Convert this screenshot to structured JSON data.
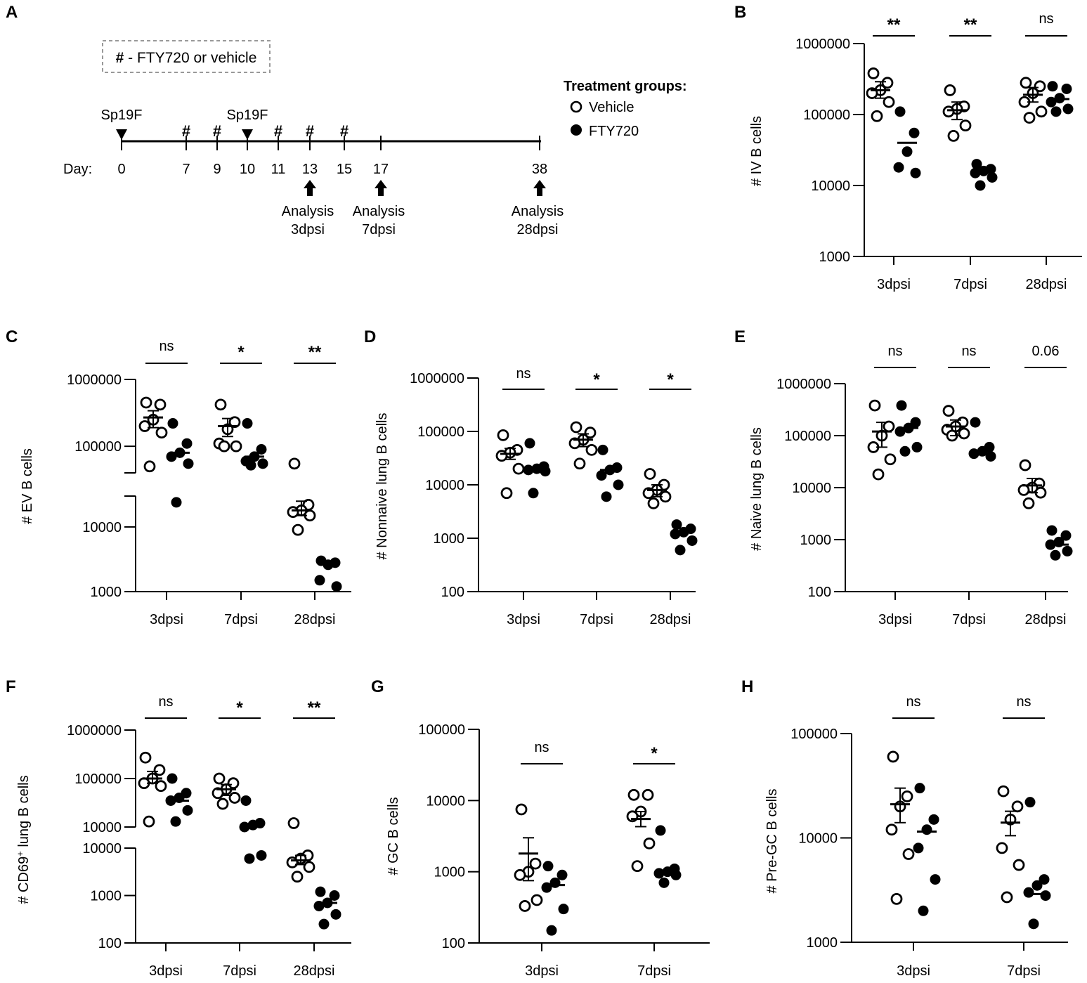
{
  "panel_labels": {
    "A": "A",
    "B": "B",
    "C": "C",
    "D": "D",
    "E": "E",
    "F": "F",
    "G": "G",
    "H": "H"
  },
  "timeline": {
    "legend_box": "# - FTY720 or vehicle",
    "day_prefix": "Day:",
    "infection_label": "Sp19F",
    "dose_symbol": "#",
    "days": [
      0,
      7,
      9,
      10,
      11,
      13,
      15,
      17,
      38
    ],
    "infection_days": [
      0,
      10
    ],
    "dose_days": [
      7,
      9,
      11,
      13,
      15
    ],
    "analyses": [
      {
        "day": 13,
        "line1": "Analysis",
        "line2": "3dpsi"
      },
      {
        "day": 17,
        "line1": "Analysis",
        "line2": "7dpsi"
      },
      {
        "day": 38,
        "line1": "Analysis",
        "line2": "28dpsi"
      }
    ],
    "treatment_title": "Treatment groups:",
    "groups": [
      {
        "name": "Vehicle",
        "marker": "open-circle"
      },
      {
        "name": "FTY720",
        "marker": "filled-circle"
      }
    ]
  },
  "chart_data": [
    {
      "panel": "B",
      "type": "scatter",
      "scale": "log",
      "ylabel": "# IV B cells",
      "ylim": [
        1000,
        1000000
      ],
      "yticks": [
        "1000000",
        "100000",
        "10000",
        "1000"
      ],
      "categories": [
        "3dpsi",
        "7dpsi",
        "28dpsi"
      ],
      "significance": [
        "**",
        "**",
        "ns"
      ],
      "series": [
        {
          "name": "Vehicle",
          "marker": "open",
          "values": [
            [
              380000,
              280000,
              220000,
              200000,
              150000,
              95000
            ],
            [
              220000,
              130000,
              120000,
              110000,
              70000,
              50000
            ],
            [
              280000,
              250000,
              200000,
              150000,
              110000,
              90000
            ]
          ],
          "mean": [
            220000,
            115000,
            190000
          ],
          "sem": [
            [
              170000,
              290000
            ],
            [
              85000,
              150000
            ],
            [
              150000,
              240000
            ]
          ]
        },
        {
          "name": "FTY720",
          "marker": "filled",
          "values": [
            [
              110000,
              55000,
              30000,
              18000,
              15000
            ],
            [
              20000,
              17000,
              16000,
              15000,
              13000,
              10000
            ],
            [
              250000,
              230000,
              170000,
              150000,
              120000,
              110000
            ]
          ],
          "mean": [
            40000,
            15500,
            165000
          ],
          "sem": null
        }
      ]
    },
    {
      "panel": "C",
      "type": "scatter",
      "scale": "log-broken",
      "ylabel": "# EV B cells",
      "ylim": [
        1000,
        1000000
      ],
      "axis_break": [
        30000,
        40000
      ],
      "yticks": [
        "1000000",
        "100000",
        "10000",
        "1000"
      ],
      "categories": [
        "3dpsi",
        "7dpsi",
        "28dpsi"
      ],
      "significance": [
        "ns",
        "*",
        "**"
      ],
      "series": [
        {
          "name": "Vehicle",
          "marker": "open",
          "values": [
            [
              450000,
              420000,
              250000,
              200000,
              160000,
              50000
            ],
            [
              420000,
              230000,
              180000,
              110000,
              100000,
              100000
            ],
            [
              55000,
              22000,
              18000,
              17000,
              15000,
              9000
            ]
          ],
          "mean": [
            270000,
            200000,
            18000
          ],
          "sem": [
            [
              190000,
              340000
            ],
            [
              140000,
              260000
            ],
            [
              15000,
              25000
            ]
          ]
        },
        {
          "name": "FTY720",
          "marker": "filled",
          "values": [
            [
              220000,
              110000,
              80000,
              70000,
              55000,
              24000
            ],
            [
              220000,
              90000,
              70000,
              60000,
              55000,
              52000
            ],
            [
              3000,
              2800,
              2600,
              1500,
              1200
            ]
          ],
          "mean": [
            80000,
            70000,
            2700
          ],
          "sem": null
        }
      ]
    },
    {
      "panel": "D",
      "type": "scatter",
      "scale": "log",
      "ylabel": "# Nonnaive lung B cells",
      "ylim": [
        100,
        1000000
      ],
      "yticks": [
        "1000000",
        "100000",
        "10000",
        "1000",
        "100"
      ],
      "categories": [
        "3dpsi",
        "7dpsi",
        "28dpsi"
      ],
      "significance": [
        "ns",
        "*",
        "*"
      ],
      "series": [
        {
          "name": "Vehicle",
          "marker": "open",
          "values": [
            [
              85000,
              45000,
              40000,
              35000,
              20000,
              7000
            ],
            [
              120000,
              95000,
              70000,
              60000,
              45000,
              25000
            ],
            [
              16000,
              10000,
              8000,
              7000,
              6000,
              4500
            ]
          ],
          "mean": [
            38000,
            70000,
            8000
          ],
          "sem": [
            [
              30000,
              48000
            ],
            [
              52000,
              90000
            ],
            [
              6000,
              10000
            ]
          ]
        },
        {
          "name": "FTY720",
          "marker": "filled",
          "values": [
            [
              60000,
              22000,
              20000,
              19000,
              18000,
              7000
            ],
            [
              45000,
              21000,
              19000,
              15000,
              10000,
              6000
            ],
            [
              1800,
              1500,
              1300,
              1200,
              900,
              600
            ]
          ],
          "mean": [
            19000,
            19000,
            1300
          ],
          "sem": null
        }
      ]
    },
    {
      "panel": "E",
      "type": "scatter",
      "scale": "log",
      "ylabel": "# Naive lung B cells",
      "ylim": [
        100,
        1000000
      ],
      "yticks": [
        "1000000",
        "100000",
        "10000",
        "1000",
        "100"
      ],
      "categories": [
        "3dpsi",
        "7dpsi",
        "28dpsi"
      ],
      "significance": [
        "ns",
        "ns",
        "0.06"
      ],
      "series": [
        {
          "name": "Vehicle",
          "marker": "open",
          "values": [
            [
              380000,
              150000,
              100000,
              60000,
              35000,
              18000
            ],
            [
              300000,
              180000,
              150000,
              130000,
              110000,
              100000
            ],
            [
              27000,
              12000,
              10000,
              9000,
              8000,
              5000
            ]
          ],
          "mean": [
            120000,
            150000,
            11000
          ],
          "sem": [
            [
              60000,
              180000
            ],
            [
              100000,
              200000
            ],
            [
              8000,
              15000
            ]
          ]
        },
        {
          "name": "FTY720",
          "marker": "filled",
          "values": [
            [
              380000,
              180000,
              140000,
              120000,
              60000,
              50000
            ],
            [
              180000,
              60000,
              50000,
              45000,
              40000
            ],
            [
              1500,
              1200,
              900,
              800,
              600,
              500
            ]
          ],
          "mean": [
            140000,
            50000,
            800
          ],
          "sem": null
        }
      ]
    },
    {
      "panel": "F",
      "type": "scatter",
      "scale": "log-broken",
      "ylabel": "# CD69+ lung B cells",
      "ylabel_main": "# CD69",
      "ylabel_sup": "+",
      "ylabel_rest": " lung B cells",
      "ylim": [
        100,
        1000000
      ],
      "axis_break": [
        10000,
        10000
      ],
      "yticks_upper": [
        "1000000",
        "100000",
        "10000"
      ],
      "yticks_lower": [
        "10000",
        "1000",
        "100"
      ],
      "categories": [
        "3dpsi",
        "7dpsi",
        "28dpsi"
      ],
      "significance": [
        "ns",
        "*",
        "**"
      ],
      "series": [
        {
          "name": "Vehicle",
          "marker": "open",
          "values": [
            [
              270000,
              150000,
              100000,
              80000,
              70000,
              13000
            ],
            [
              100000,
              80000,
              60000,
              50000,
              40000,
              30000
            ],
            [
              12000,
              7000,
              6000,
              5000,
              4000,
              2500
            ]
          ],
          "mean": [
            100000,
            60000,
            5500
          ],
          "sem": [
            [
              80000,
              140000
            ],
            [
              45000,
              75000
            ],
            [
              4500,
              7000
            ]
          ]
        },
        {
          "name": "FTY720",
          "marker": "filled",
          "values": [
            [
              100000,
              50000,
              40000,
              35000,
              22000,
              13000
            ],
            [
              35000,
              12000,
              11000,
              10000,
              7000,
              6000
            ],
            [
              1200,
              1000,
              700,
              600,
              400,
              250
            ]
          ],
          "mean": [
            35000,
            10500,
            700
          ],
          "sem": null
        }
      ]
    },
    {
      "panel": "G",
      "type": "scatter",
      "scale": "log",
      "ylabel": "# GC B cells",
      "ylim": [
        100,
        100000
      ],
      "yticks": [
        "100000",
        "10000",
        "1000",
        "100"
      ],
      "categories": [
        "3dpsi",
        "7dpsi"
      ],
      "significance": [
        "ns",
        "*"
      ],
      "series": [
        {
          "name": "Vehicle",
          "marker": "open",
          "values": [
            [
              7500,
              1300,
              1000,
              900,
              400,
              330
            ],
            [
              12000,
              12000,
              7000,
              6000,
              2500,
              1200
            ]
          ],
          "mean": [
            1800,
            5500
          ],
          "sem": [
            [
              750,
              3000
            ],
            [
              4300,
              7000
            ]
          ]
        },
        {
          "name": "FTY720",
          "marker": "filled",
          "values": [
            [
              1200,
              900,
              700,
              600,
              300,
              150
            ],
            [
              3800,
              1100,
              1000,
              950,
              900,
              700
            ]
          ],
          "mean": [
            650,
            1000
          ],
          "sem": null
        }
      ]
    },
    {
      "panel": "H",
      "type": "scatter",
      "scale": "log",
      "ylabel": "# Pre-GC B cells",
      "ylim": [
        1000,
        100000
      ],
      "yticks": [
        "100000",
        "10000",
        "1000"
      ],
      "categories": [
        "3dpsi",
        "7dpsi"
      ],
      "significance": [
        "ns",
        "ns"
      ],
      "series": [
        {
          "name": "Vehicle",
          "marker": "open",
          "values": [
            [
              60000,
              25000,
              20000,
              12000,
              7000,
              2600
            ],
            [
              28000,
              20000,
              15000,
              8000,
              5500,
              2700
            ]
          ],
          "mean": [
            21000,
            14000
          ],
          "sem": [
            [
              14000,
              30000
            ],
            [
              10500,
              18000
            ]
          ]
        },
        {
          "name": "FTY720",
          "marker": "filled",
          "values": [
            [
              30000,
              15000,
              12000,
              8000,
              4000,
              2000
            ],
            [
              22000,
              4000,
              3500,
              3000,
              2800,
              1500
            ]
          ],
          "mean": [
            11500,
            2900
          ],
          "sem": null
        }
      ]
    }
  ]
}
